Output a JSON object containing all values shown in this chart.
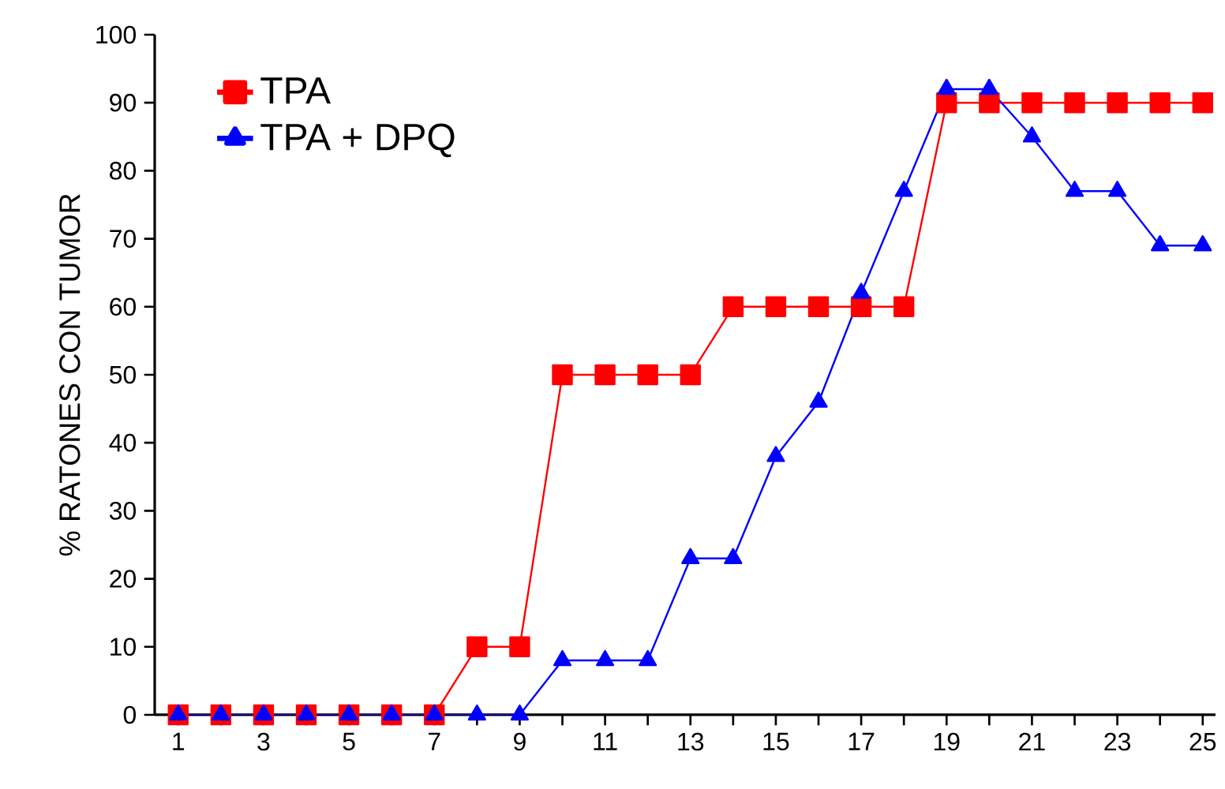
{
  "chart_data": {
    "type": "line",
    "ylabel": "% RATONES CON TUMOR",
    "x": [
      1,
      2,
      3,
      4,
      5,
      6,
      7,
      8,
      9,
      10,
      11,
      12,
      13,
      14,
      15,
      16,
      17,
      18,
      19,
      20,
      21,
      22,
      23,
      24,
      25
    ],
    "series": [
      {
        "name": "TPA",
        "color": "#ff0000",
        "marker": "square",
        "values": [
          0,
          0,
          0,
          0,
          0,
          0,
          0,
          10,
          10,
          50,
          50,
          50,
          50,
          60,
          60,
          60,
          60,
          60,
          90,
          90,
          90,
          90,
          90,
          90,
          90
        ]
      },
      {
        "name": "TPA + DPQ",
        "color": "#0000ff",
        "marker": "triangle",
        "values": [
          0,
          0,
          0,
          0,
          0,
          0,
          0,
          0,
          0,
          8,
          8,
          8,
          23,
          23,
          38,
          46,
          62,
          77,
          92,
          92,
          85,
          77,
          77,
          69,
          69
        ]
      }
    ],
    "xlim": [
      0.45,
      25.3
    ],
    "ylim": [
      0,
      100
    ],
    "xticks": [
      1,
      {
        "value": 2,
        "label": null
      },
      3,
      {
        "value": 4,
        "label": null
      },
      5,
      {
        "value": 6,
        "label": null
      },
      7,
      {
        "value": 8,
        "label": null
      },
      9,
      {
        "value": 10,
        "label": null
      },
      11,
      {
        "value": 12,
        "label": null
      },
      13,
      {
        "value": 14,
        "label": null
      },
      15,
      {
        "value": 16,
        "label": null
      },
      17,
      {
        "value": 18,
        "label": null
      },
      19,
      {
        "value": 20,
        "label": null
      },
      21,
      {
        "value": 22,
        "label": null
      },
      23,
      {
        "value": 24,
        "label": null
      },
      25
    ],
    "yticks": [
      0,
      10,
      20,
      30,
      40,
      50,
      60,
      70,
      80,
      90,
      100
    ],
    "grid": false,
    "legend": "top left",
    "line_style": "solid"
  }
}
